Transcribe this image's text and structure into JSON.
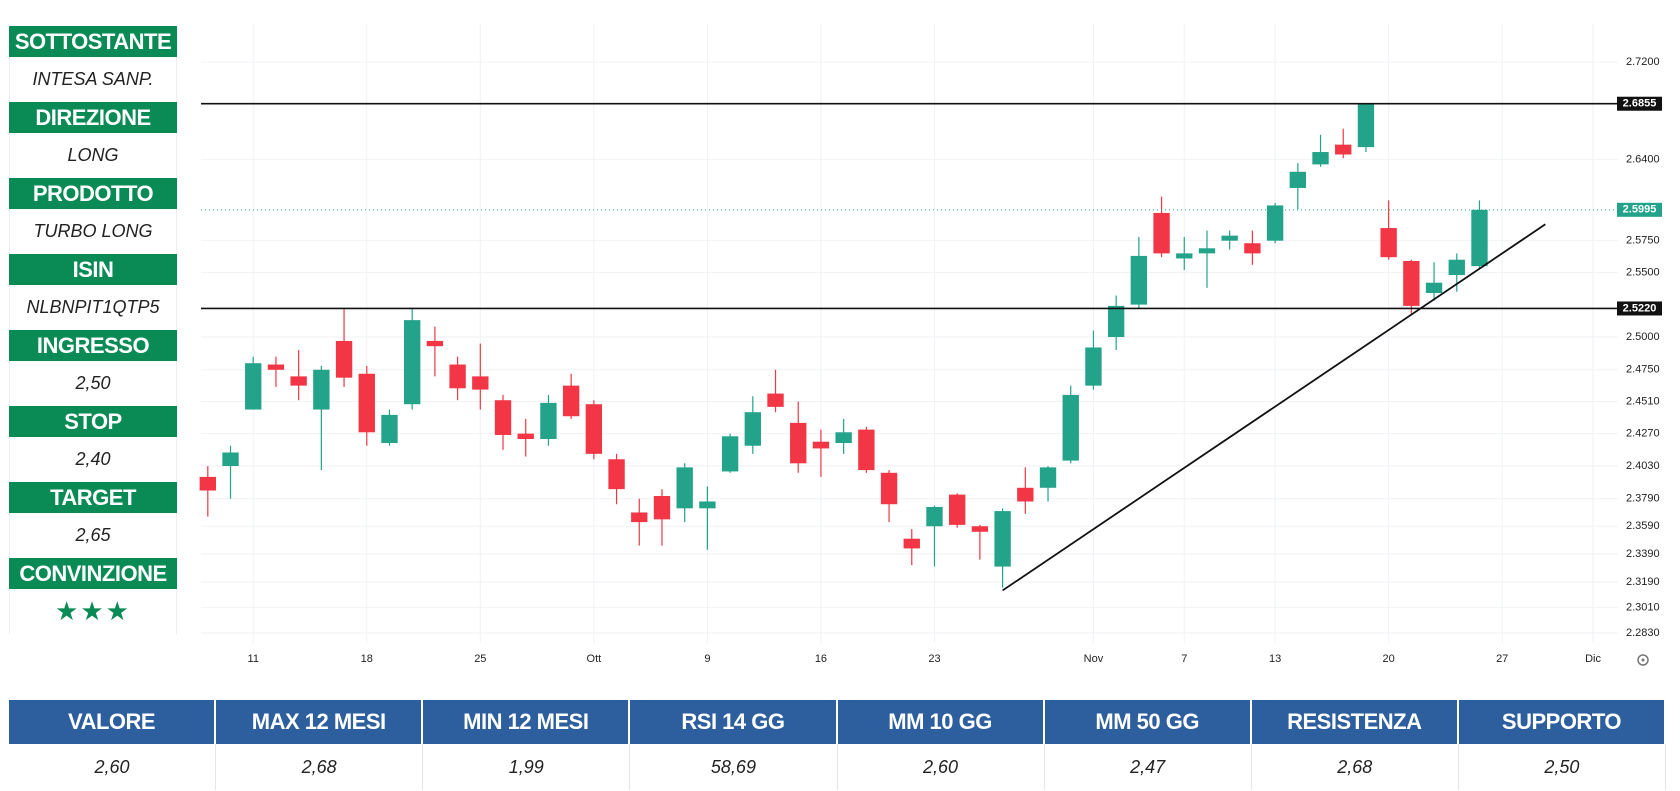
{
  "panel": [
    {
      "label": "SOTTOSTANTE",
      "value": "INTESA SANP."
    },
    {
      "label": "DIREZIONE",
      "value": "LONG"
    },
    {
      "label": "PRODOTTO",
      "value": "TURBO LONG"
    },
    {
      "label": "ISIN",
      "value": "NLBNPIT1QTP5"
    },
    {
      "label": "INGRESSO",
      "value": "2,50"
    },
    {
      "label": "STOP",
      "value": "2,40"
    },
    {
      "label": "TARGET",
      "value": "2,65"
    },
    {
      "label": "CONVINZIONE",
      "value": "★★★"
    }
  ],
  "table": {
    "headers": [
      "VALORE",
      "MAX 12 MESI",
      "MIN 12 MESI",
      "RSI 14 GG",
      "MM 10 GG",
      "MM 50 GG",
      "RESISTENZA",
      "SUPPORTO"
    ],
    "values": [
      "2,60",
      "2,68",
      "1,99",
      "58,69",
      "2,60",
      "2,47",
      "2,68",
      "2,50"
    ]
  },
  "chart_data": {
    "type": "candlestick",
    "up_color": "#22a38a",
    "down_color": "#f23645",
    "log": true,
    "grid": true,
    "open": [
      2.395,
      2.403,
      2.445,
      2.479,
      2.47,
      2.445,
      2.497,
      2.472,
      2.42,
      2.449,
      2.497,
      2.479,
      2.47,
      2.452,
      2.427,
      2.423,
      2.463,
      2.449,
      2.408,
      2.369,
      2.381,
      2.372,
      2.372,
      2.399,
      2.418,
      2.457,
      2.435,
      2.421,
      2.42,
      2.43,
      2.398,
      2.35,
      2.359,
      2.382,
      2.359,
      2.33,
      2.387,
      2.387,
      2.407,
      2.463,
      2.5,
      2.525,
      2.597,
      2.561,
      2.565,
      2.575,
      2.573,
      2.575,
      2.617,
      2.636,
      2.652,
      2.65,
      2.585,
      2.559,
      2.534,
      2.548,
      2.555
    ],
    "high": [
      2.403,
      2.418,
      2.485,
      2.485,
      2.49,
      2.478,
      2.522,
      2.478,
      2.445,
      2.522,
      2.508,
      2.485,
      2.495,
      2.456,
      2.438,
      2.456,
      2.472,
      2.452,
      2.412,
      2.379,
      2.386,
      2.405,
      2.388,
      2.427,
      2.455,
      2.475,
      2.451,
      2.43,
      2.438,
      2.432,
      2.4,
      2.357,
      2.374,
      2.383,
      2.36,
      2.372,
      2.402,
      2.403,
      2.463,
      2.505,
      2.532,
      2.578,
      2.61,
      2.578,
      2.583,
      2.583,
      2.583,
      2.605,
      2.637,
      2.66,
      2.665,
      2.6855,
      2.607,
      2.56,
      2.558,
      2.565,
      2.607
    ],
    "low": [
      2.366,
      2.379,
      2.445,
      2.462,
      2.452,
      2.4,
      2.462,
      2.418,
      2.418,
      2.445,
      2.47,
      2.452,
      2.445,
      2.415,
      2.41,
      2.418,
      2.438,
      2.408,
      2.375,
      2.345,
      2.345,
      2.362,
      2.342,
      2.398,
      2.412,
      2.443,
      2.398,
      2.395,
      2.412,
      2.398,
      2.362,
      2.331,
      2.33,
      2.358,
      2.335,
      2.315,
      2.368,
      2.377,
      2.405,
      2.46,
      2.49,
      2.522,
      2.562,
      2.552,
      2.538,
      2.568,
      2.556,
      2.573,
      2.6,
      2.634,
      2.641,
      2.646,
      2.56,
      2.518,
      2.528,
      2.535,
      2.553
    ],
    "close": [
      2.385,
      2.413,
      2.48,
      2.475,
      2.463,
      2.475,
      2.469,
      2.428,
      2.441,
      2.513,
      2.493,
      2.461,
      2.46,
      2.426,
      2.423,
      2.45,
      2.44,
      2.412,
      2.386,
      2.362,
      2.364,
      2.402,
      2.377,
      2.425,
      2.443,
      2.447,
      2.405,
      2.416,
      2.428,
      2.4,
      2.375,
      2.343,
      2.373,
      2.36,
      2.355,
      2.37,
      2.377,
      2.402,
      2.456,
      2.492,
      2.524,
      2.563,
      2.565,
      2.565,
      2.569,
      2.579,
      2.565,
      2.603,
      2.63,
      2.646,
      2.644,
      2.6855,
      2.562,
      2.524,
      2.542,
      2.56,
      2.5995
    ],
    "xlim": [
      -0.3,
      62.1
    ],
    "xticks": [
      {
        "value": 2,
        "label": "11"
      },
      {
        "value": 7,
        "label": "18"
      },
      {
        "value": 12,
        "label": "25"
      },
      {
        "value": 17,
        "label": "Ott"
      },
      {
        "value": 22,
        "label": "9"
      },
      {
        "value": 27,
        "label": "16"
      },
      {
        "value": 32,
        "label": "23"
      },
      {
        "value": 39,
        "label": "Nov"
      },
      {
        "value": 43,
        "label": "7"
      },
      {
        "value": 47,
        "label": "13"
      },
      {
        "value": 52,
        "label": "20"
      },
      {
        "value": 57,
        "label": "27"
      },
      {
        "value": 61,
        "label": "Dic"
      }
    ],
    "ylim": [
      2.276,
      2.752
    ],
    "yticks": [
      {
        "value": 2.72,
        "label": "2.7200"
      },
      {
        "value": 2.64,
        "label": "2.6400"
      },
      {
        "value": 2.575,
        "label": "2.5750"
      },
      {
        "value": 2.55,
        "label": "2.5500"
      },
      {
        "value": 2.5,
        "label": "2.5000"
      },
      {
        "value": 2.475,
        "label": "2.4750"
      },
      {
        "value": 2.451,
        "label": "2.4510"
      },
      {
        "value": 2.427,
        "label": "2.4270"
      },
      {
        "value": 2.403,
        "label": "2.4030"
      },
      {
        "value": 2.379,
        "label": "2.3790"
      },
      {
        "value": 2.359,
        "label": "2.3590"
      },
      {
        "value": 2.339,
        "label": "2.3390"
      },
      {
        "value": 2.319,
        "label": "2.3190"
      },
      {
        "value": 2.301,
        "label": "2.3010"
      },
      {
        "value": 2.283,
        "label": "2.2830"
      }
    ],
    "levels": [
      {
        "value": 2.6855,
        "label": "2.6855",
        "style": "solid",
        "color": "#111111"
      },
      {
        "value": 2.5995,
        "label": "2.5995",
        "style": "dotted",
        "color": "#22a38a"
      },
      {
        "value": 2.522,
        "label": "2.5220",
        "style": "solid",
        "color": "#111111"
      }
    ],
    "trendline": {
      "x": [
        35,
        58.9
      ],
      "y": [
        2.313,
        2.588
      ],
      "color": "#111111"
    }
  }
}
